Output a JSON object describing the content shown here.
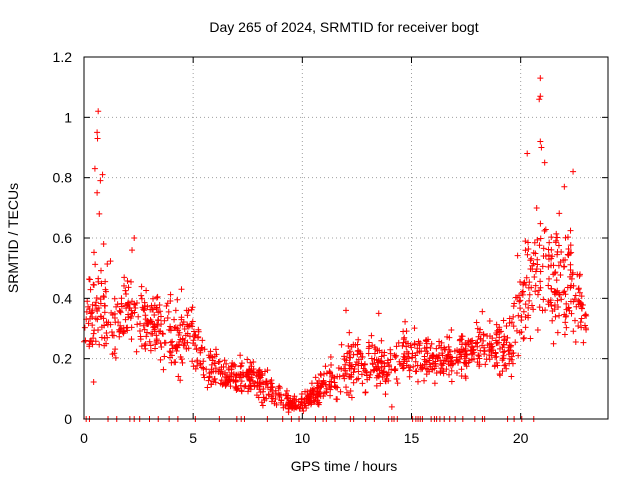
{
  "chart_data": {
    "type": "scatter",
    "title": "Day 265 of 2024, SRMTID for receiver bogt",
    "xlabel": "GPS time / hours",
    "ylabel": "SRMTID / TECUs",
    "xlim": [
      0,
      24
    ],
    "ylim": [
      0,
      1.2
    ],
    "xticks": [
      "0",
      "5",
      "10",
      "15",
      "20"
    ],
    "xtick_values": [
      0,
      5,
      10,
      15,
      20
    ],
    "yticks": [
      "0",
      "0.2",
      "0.4",
      "0.6",
      "0.8",
      "1",
      "1.2"
    ],
    "ytick_values": [
      0,
      0.2,
      0.4,
      0.6,
      0.8,
      1.0,
      1.2
    ],
    "grid": true,
    "marker": "+",
    "series_color": "#ff0000",
    "series": [
      {
        "name": "SRMTID",
        "x_range": [
          0,
          23
        ],
        "note": "dense scatter of ~1500 samples; envelope (mean level by hour) listed below, individual scatter generated from this envelope",
        "envelope_hours": [
          0,
          0.5,
          1,
          1.5,
          2,
          2.5,
          3,
          3.5,
          4,
          4.5,
          5,
          5.5,
          6,
          6.5,
          7,
          7.5,
          8,
          8.5,
          9,
          9.5,
          10,
          10.5,
          11,
          11.5,
          12,
          12.5,
          13,
          13.5,
          14,
          14.5,
          15,
          15.5,
          16,
          16.5,
          17,
          17.5,
          18,
          18.5,
          19,
          19.5,
          20,
          20.5,
          21,
          21.5,
          22,
          22.5,
          23
        ],
        "envelope_mean": [
          0.3,
          0.36,
          0.34,
          0.33,
          0.36,
          0.34,
          0.31,
          0.3,
          0.27,
          0.28,
          0.27,
          0.2,
          0.17,
          0.15,
          0.14,
          0.14,
          0.13,
          0.1,
          0.07,
          0.05,
          0.05,
          0.08,
          0.12,
          0.13,
          0.17,
          0.19,
          0.18,
          0.18,
          0.17,
          0.21,
          0.22,
          0.2,
          0.21,
          0.2,
          0.21,
          0.22,
          0.24,
          0.24,
          0.24,
          0.25,
          0.38,
          0.48,
          0.5,
          0.45,
          0.48,
          0.43,
          0.3
        ],
        "envelope_spread": [
          0.1,
          0.14,
          0.12,
          0.1,
          0.1,
          0.09,
          0.08,
          0.08,
          0.09,
          0.1,
          0.08,
          0.06,
          0.05,
          0.04,
          0.04,
          0.04,
          0.04,
          0.04,
          0.03,
          0.02,
          0.02,
          0.03,
          0.04,
          0.05,
          0.07,
          0.07,
          0.06,
          0.06,
          0.05,
          0.07,
          0.06,
          0.05,
          0.05,
          0.05,
          0.05,
          0.06,
          0.07,
          0.07,
          0.06,
          0.08,
          0.12,
          0.15,
          0.16,
          0.14,
          0.14,
          0.12,
          0.06
        ],
        "outliers": [
          {
            "x": 0.65,
            "y": 1.02
          },
          {
            "x": 0.6,
            "y": 0.95
          },
          {
            "x": 0.62,
            "y": 0.93
          },
          {
            "x": 0.5,
            "y": 0.83
          },
          {
            "x": 0.85,
            "y": 0.81
          },
          {
            "x": 0.75,
            "y": 0.79
          },
          {
            "x": 0.6,
            "y": 0.75
          },
          {
            "x": 0.7,
            "y": 0.68
          },
          {
            "x": 0.9,
            "y": 0.58
          },
          {
            "x": 2.3,
            "y": 0.6
          },
          {
            "x": 2.2,
            "y": 0.56
          },
          {
            "x": 20.9,
            "y": 1.13
          },
          {
            "x": 20.9,
            "y": 1.07
          },
          {
            "x": 20.85,
            "y": 1.06
          },
          {
            "x": 20.3,
            "y": 0.88
          },
          {
            "x": 20.9,
            "y": 0.92
          },
          {
            "x": 20.95,
            "y": 0.9
          },
          {
            "x": 21.1,
            "y": 0.85
          },
          {
            "x": 22.4,
            "y": 0.82
          },
          {
            "x": 22.0,
            "y": 0.77
          },
          {
            "x": 13.5,
            "y": 0.35
          },
          {
            "x": 12.0,
            "y": 0.36
          },
          {
            "x": 14.1,
            "y": 0.04
          }
        ],
        "zero_marks_hours": [
          0.1,
          0.25,
          1.1,
          1.5,
          2.1,
          2.3,
          2.55,
          3.0,
          3.4,
          3.9,
          4.3,
          5.1,
          6.2,
          7.0,
          7.2,
          7.35,
          8.4,
          9.1,
          9.5,
          9.85,
          10.6,
          10.95,
          11.1,
          11.5,
          12.2,
          12.35,
          12.9,
          13.3,
          13.95,
          14.1,
          14.2,
          14.35,
          15.05,
          15.2,
          15.3,
          15.4,
          15.5,
          15.9,
          16.05,
          16.15,
          16.3,
          16.5,
          16.75,
          17.0,
          17.35,
          17.9,
          18.25,
          18.35,
          19.4,
          19.7,
          20.05,
          20.6
        ]
      }
    ]
  }
}
